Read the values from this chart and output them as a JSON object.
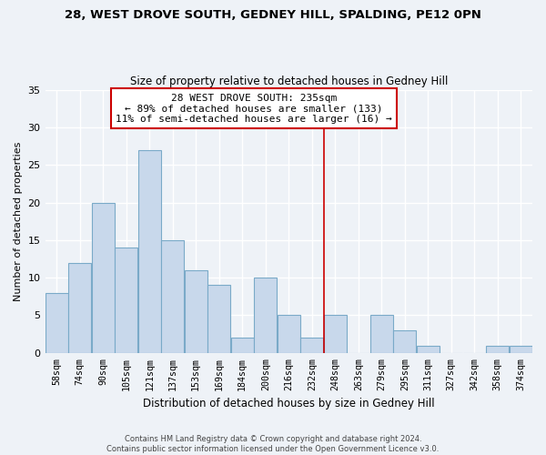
{
  "title1": "28, WEST DROVE SOUTH, GEDNEY HILL, SPALDING, PE12 0PN",
  "title2": "Size of property relative to detached houses in Gedney Hill",
  "xlabel": "Distribution of detached houses by size in Gedney Hill",
  "ylabel": "Number of detached properties",
  "bar_labels": [
    "58sqm",
    "74sqm",
    "90sqm",
    "105sqm",
    "121sqm",
    "137sqm",
    "153sqm",
    "169sqm",
    "184sqm",
    "200sqm",
    "216sqm",
    "232sqm",
    "248sqm",
    "263sqm",
    "279sqm",
    "295sqm",
    "311sqm",
    "327sqm",
    "342sqm",
    "358sqm",
    "374sqm"
  ],
  "bar_values": [
    8,
    12,
    20,
    14,
    27,
    15,
    11,
    9,
    2,
    10,
    5,
    2,
    5,
    0,
    5,
    3,
    1,
    0,
    0,
    1,
    1
  ],
  "bar_color": "#c8d8eb",
  "bar_edge_color": "#7aaac8",
  "property_line_x_label": "232sqm",
  "property_line_color": "#cc0000",
  "ylim": [
    0,
    35
  ],
  "yticks": [
    0,
    5,
    10,
    15,
    20,
    25,
    30,
    35
  ],
  "annotation_title": "28 WEST DROVE SOUTH: 235sqm",
  "annotation_line1": "← 89% of detached houses are smaller (133)",
  "annotation_line2": "11% of semi-detached houses are larger (16) →",
  "annotation_box_color": "#ffffff",
  "annotation_border_color": "#cc0000",
  "footer1": "Contains HM Land Registry data © Crown copyright and database right 2024.",
  "footer2": "Contains public sector information licensed under the Open Government Licence v3.0.",
  "background_color": "#eef2f7",
  "grid_color": "#ffffff",
  "title1_fontsize": 9.5,
  "title2_fontsize": 8.5,
  "xlabel_fontsize": 8.5,
  "ylabel_fontsize": 8.0,
  "annotation_fontsize": 8.0,
  "footer_fontsize": 6.0
}
